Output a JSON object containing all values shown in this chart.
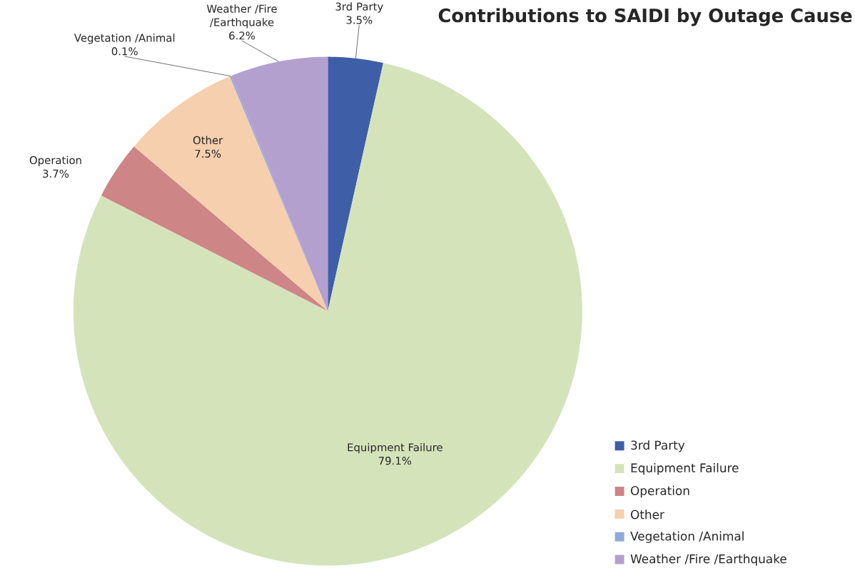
{
  "chart_data": {
    "type": "pie",
    "title": "Contributions to SAIDI by Outage Cause",
    "categories": [
      "3rd Party",
      "Equipment Failure",
      "Operation",
      "Other",
      "Vegetation /Animal",
      "Weather /Fire /Earthquake"
    ],
    "values": [
      3.5,
      79.1,
      3.7,
      7.5,
      0.1,
      6.2
    ],
    "value_labels": [
      "3.5%",
      "79.1%",
      "3.7%",
      "7.5%",
      "0.1%",
      "6.2%"
    ],
    "colors": [
      "#3f5ea8",
      "#d5e3bb",
      "#cd8585",
      "#f6cfae",
      "#8eaadb",
      "#b4a0cf"
    ],
    "legend": "bottom right"
  }
}
